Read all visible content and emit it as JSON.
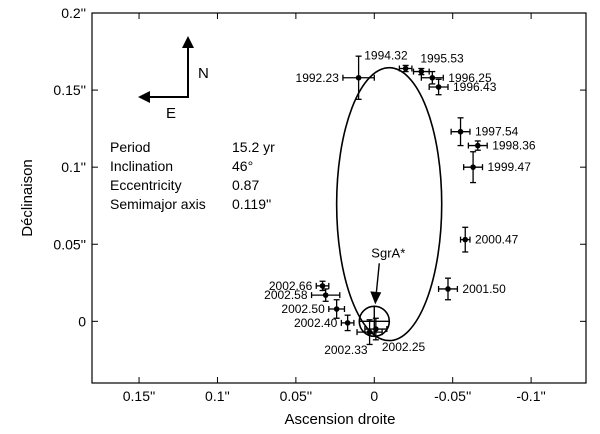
{
  "chart_data": {
    "type": "scatter",
    "xlabel": "Ascension droite",
    "ylabel": "Déclinaison",
    "xlim": [
      0.18,
      -0.135
    ],
    "ylim": [
      -0.04,
      0.2
    ],
    "x_ticks": [
      {
        "value": 0.15,
        "label": "0.15''"
      },
      {
        "value": 0.1,
        "label": "0.1''"
      },
      {
        "value": 0.05,
        "label": "0.05''"
      },
      {
        "value": 0.0,
        "label": "0"
      },
      {
        "value": -0.05,
        "label": "-0.05''"
      },
      {
        "value": -0.1,
        "label": "-0.1''"
      }
    ],
    "y_ticks": [
      {
        "value": 0.2,
        "label": "0.2''"
      },
      {
        "value": 0.15,
        "label": "0.15''"
      },
      {
        "value": 0.1,
        "label": "0.1''"
      },
      {
        "value": 0.05,
        "label": "0.05''"
      },
      {
        "value": 0.0,
        "label": "0"
      }
    ],
    "points": [
      {
        "label": "1992.23",
        "x": 0.01,
        "y": 0.158,
        "xerr": 0.01,
        "yerr": 0.014,
        "label_side": "left"
      },
      {
        "label": "1994.32",
        "x": -0.02,
        "y": 0.164,
        "xerr": 0.004,
        "yerr": 0.002,
        "label_side": "above-left"
      },
      {
        "label": "1995.53",
        "x": -0.03,
        "y": 0.162,
        "xerr": 0.005,
        "yerr": 0.002,
        "label_side": "above-right"
      },
      {
        "label": "1996.25",
        "x": -0.037,
        "y": 0.158,
        "xerr": 0.007,
        "yerr": 0.004,
        "label_side": "right"
      },
      {
        "label": "1996.43",
        "x": -0.041,
        "y": 0.152,
        "xerr": 0.006,
        "yerr": 0.005,
        "label_side": "right"
      },
      {
        "label": "1997.54",
        "x": -0.055,
        "y": 0.123,
        "xerr": 0.006,
        "yerr": 0.009,
        "label_side": "right"
      },
      {
        "label": "1998.36",
        "x": -0.066,
        "y": 0.114,
        "xerr": 0.006,
        "yerr": 0.003,
        "label_side": "right"
      },
      {
        "label": "1999.47",
        "x": -0.063,
        "y": 0.1,
        "xerr": 0.006,
        "yerr": 0.01,
        "label_side": "right"
      },
      {
        "label": "2000.47",
        "x": -0.058,
        "y": 0.053,
        "xerr": 0.003,
        "yerr": 0.008,
        "label_side": "right"
      },
      {
        "label": "2001.50",
        "x": -0.047,
        "y": 0.021,
        "xerr": 0.006,
        "yerr": 0.007,
        "label_side": "right"
      },
      {
        "label": "2002.66",
        "x": 0.033,
        "y": 0.023,
        "xerr": 0.004,
        "yerr": 0.003,
        "label_side": "left"
      },
      {
        "label": "2002.58",
        "x": 0.031,
        "y": 0.017,
        "xerr": 0.009,
        "yerr": 0.004,
        "label_side": "left"
      },
      {
        "label": "2002.50",
        "x": 0.024,
        "y": 0.008,
        "xerr": 0.005,
        "yerr": 0.006,
        "label_side": "left"
      },
      {
        "label": "2002.40",
        "x": 0.017,
        "y": -0.001,
        "xerr": 0.004,
        "yerr": 0.005,
        "label_side": "left"
      },
      {
        "label": "2002.33",
        "x": 0.003,
        "y": -0.007,
        "xerr": 0.008,
        "yerr": 0.008,
        "label_side": "below-left"
      },
      {
        "label": "2002.25",
        "x": -0.001,
        "y": -0.005,
        "xerr": 0.007,
        "yerr": 0.007,
        "label_side": "below-right"
      }
    ],
    "orbit": {
      "center_x": -0.0095,
      "center_y": 0.076,
      "semi_x": 0.0335,
      "semi_y": 0.0885,
      "rotation": 0
    },
    "source": {
      "label": "SgrA*",
      "x": 0.0,
      "y": 0.0
    },
    "parameters": [
      {
        "name": "Period",
        "value": "15.2 yr"
      },
      {
        "name": "Inclination",
        "value": "46°"
      },
      {
        "name": "Eccentricity",
        "value": "0.87"
      },
      {
        "name": "Semimajor axis",
        "value": "0.119''"
      }
    ],
    "compass": {
      "north": "N",
      "east": "E"
    }
  }
}
